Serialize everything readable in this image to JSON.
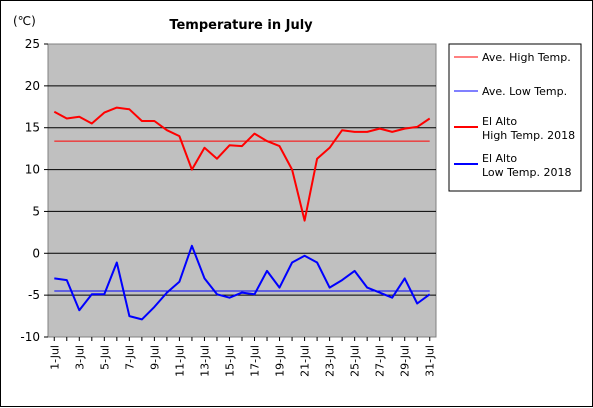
{
  "chart_data": {
    "type": "line",
    "title": "Temperature in July",
    "unit_label": "(℃)",
    "ylim": [
      -10,
      25
    ],
    "y_ticks": [
      25,
      20,
      15,
      10,
      5,
      0,
      -5,
      -10
    ],
    "grid": true,
    "legend_position": "right",
    "categories": [
      "1-Jul",
      "2-Jul",
      "3-Jul",
      "4-Jul",
      "5-Jul",
      "6-Jul",
      "7-Jul",
      "8-Jul",
      "9-Jul",
      "10-Jul",
      "11-Jul",
      "12-Jul",
      "13-Jul",
      "14-Jul",
      "15-Jul",
      "16-Jul",
      "17-Jul",
      "18-Jul",
      "19-Jul",
      "20-Jul",
      "21-Jul",
      "22-Jul",
      "23-Jul",
      "24-Jul",
      "25-Jul",
      "26-Jul",
      "27-Jul",
      "28-Jul",
      "29-Jul",
      "30-Jul",
      "31-Jul"
    ],
    "x_tick_labels": [
      "1-Jul",
      "3-Jul",
      "5-Jul",
      "7-Jul",
      "9-Jul",
      "11-Jul",
      "13-Jul",
      "15-Jul",
      "17-Jul",
      "19-Jul",
      "21-Jul",
      "23-Jul",
      "25-Jul",
      "27-Jul",
      "29-Jul",
      "31-Jul"
    ],
    "series": [
      {
        "name": "Ave. High Temp.",
        "color": "#ff0000",
        "width": 1,
        "values": [
          13.4,
          13.4,
          13.4,
          13.4,
          13.4,
          13.4,
          13.4,
          13.4,
          13.4,
          13.4,
          13.4,
          13.4,
          13.4,
          13.4,
          13.4,
          13.4,
          13.4,
          13.4,
          13.4,
          13.4,
          13.4,
          13.4,
          13.4,
          13.4,
          13.4,
          13.4,
          13.4,
          13.4,
          13.4,
          13.4,
          13.4
        ]
      },
      {
        "name": "Ave. Low Temp.",
        "color": "#0000ff",
        "width": 1,
        "values": [
          -4.5,
          -4.5,
          -4.5,
          -4.5,
          -4.5,
          -4.5,
          -4.5,
          -4.5,
          -4.5,
          -4.5,
          -4.5,
          -4.5,
          -4.5,
          -4.5,
          -4.5,
          -4.5,
          -4.5,
          -4.5,
          -4.5,
          -4.5,
          -4.5,
          -4.5,
          -4.5,
          -4.5,
          -4.5,
          -4.5,
          -4.5,
          -4.5,
          -4.5,
          -4.5,
          -4.5
        ]
      },
      {
        "name": "El Alto High Temp. 2018",
        "legend_lines": [
          "El Alto",
          "High Temp. 2018"
        ],
        "color": "#ff0000",
        "width": 2,
        "values": [
          16.9,
          16.1,
          16.3,
          15.5,
          16.8,
          17.4,
          17.2,
          15.8,
          15.8,
          14.7,
          14.0,
          10.0,
          12.6,
          11.3,
          12.9,
          12.8,
          14.3,
          13.4,
          12.8,
          10.0,
          3.9,
          11.3,
          12.6,
          14.7,
          14.5,
          14.5,
          14.9,
          14.5,
          14.9,
          15.1,
          16.1
        ]
      },
      {
        "name": "El Alto Low Temp. 2018",
        "legend_lines": [
          "El Alto",
          "Low Temp. 2018"
        ],
        "color": "#0000ff",
        "width": 2,
        "values": [
          -3.0,
          -3.2,
          -6.8,
          -4.9,
          -4.9,
          -1.1,
          -7.5,
          -7.9,
          -6.4,
          -4.7,
          -3.4,
          0.9,
          -3.0,
          -4.9,
          -5.3,
          -4.7,
          -4.9,
          -2.1,
          -4.1,
          -1.1,
          -0.3,
          -1.1,
          -4.1,
          -3.2,
          -2.1,
          -4.1,
          -4.7,
          -5.3,
          -3.0,
          -6.0,
          -4.9
        ]
      }
    ]
  }
}
